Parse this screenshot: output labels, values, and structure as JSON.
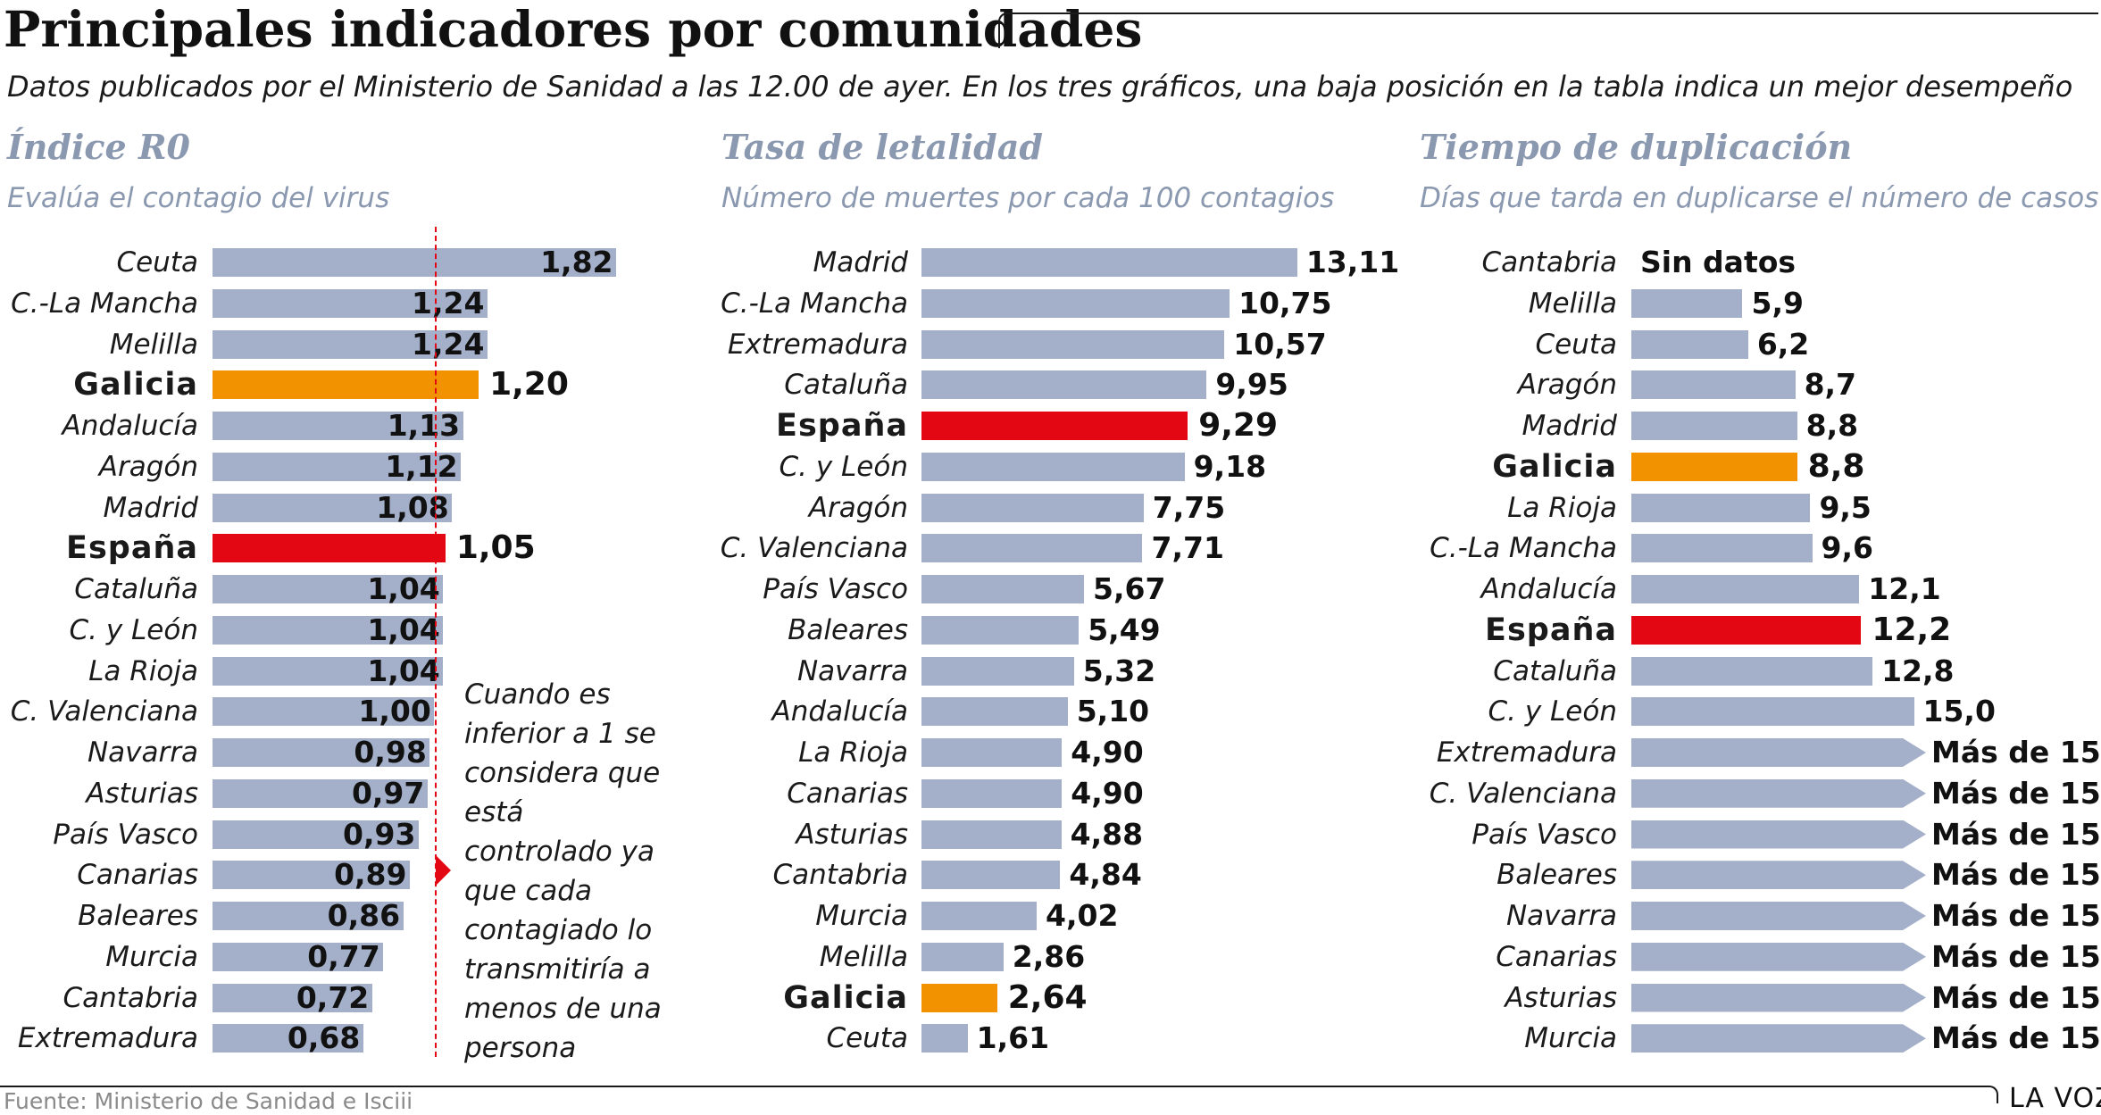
{
  "title": "Principales indicadores por comunidades",
  "subtitle": "Datos publicados por el Ministerio de Sanidad a las 12.00 de ayer. En los tres gráficos, una baja posición en la tabla indica un mejor desempeño",
  "note": "Cuando es inferior a 1 se considera que está controlado ya que cada contagiado lo transmitiría a menos de una persona",
  "source": "Fuente: Ministerio de Sanidad e Isciii",
  "brand": "LA VOZ",
  "colors": {
    "bar": "#a4b0c9",
    "galicia": "#f39200",
    "espana": "#e30613",
    "panel_title": "#8a98b0"
  },
  "chart_data": [
    {
      "type": "bar",
      "orientation": "horizontal",
      "title": "Índice R0",
      "subtitle": "Evalúa el contagio del virus",
      "reference_line": 1.0,
      "categories": [
        "Ceuta",
        "C.-La Mancha",
        "Melilla",
        "Galicia",
        "Andalucía",
        "Aragón",
        "Madrid",
        "España",
        "Cataluña",
        "C. y León",
        "La Rioja",
        "C. Valenciana",
        "Navarra",
        "Asturias",
        "País Vasco",
        "Canarias",
        "Baleares",
        "Murcia",
        "Cantabria",
        "Extremadura"
      ],
      "values": [
        1.82,
        1.24,
        1.24,
        1.2,
        1.13,
        1.12,
        1.08,
        1.05,
        1.04,
        1.04,
        1.04,
        1.0,
        0.98,
        0.97,
        0.93,
        0.89,
        0.86,
        0.77,
        0.72,
        0.68
      ],
      "labels": [
        "1,82",
        "1,24",
        "1,24",
        "1,20",
        "1,13",
        "1,12",
        "1,08",
        "1,05",
        "1,04",
        "1,04",
        "1,04",
        "1,00",
        "0,98",
        "0,97",
        "0,93",
        "0,89",
        "0,86",
        "0,77",
        "0,72",
        "0,68"
      ]
    },
    {
      "type": "bar",
      "orientation": "horizontal",
      "title": "Tasa de letalidad",
      "subtitle": "Número de muertes por cada 100 contagios",
      "categories": [
        "Madrid",
        "C.-La Mancha",
        "Extremadura",
        "Cataluña",
        "España",
        "C. y León",
        "Aragón",
        "C. Valenciana",
        "País Vasco",
        "Baleares",
        "Navarra",
        "Andalucía",
        "La Rioja",
        "Canarias",
        "Asturias",
        "Cantabria",
        "Murcia",
        "Melilla",
        "Galicia",
        "Ceuta"
      ],
      "values": [
        13.11,
        10.75,
        10.57,
        9.95,
        9.29,
        9.18,
        7.75,
        7.71,
        5.67,
        5.49,
        5.32,
        5.1,
        4.9,
        4.9,
        4.88,
        4.84,
        4.02,
        2.86,
        2.64,
        1.61
      ],
      "labels": [
        "13,11",
        "10,75",
        "10,57",
        "9,95",
        "9,29",
        "9,18",
        "7,75",
        "7,71",
        "5,67",
        "5,49",
        "5,32",
        "5,10",
        "4,90",
        "4,90",
        "4,88",
        "4,84",
        "4,02",
        "2,86",
        "2,64",
        "1,61"
      ]
    },
    {
      "type": "bar",
      "orientation": "horizontal",
      "title": "Tiempo de duplicación",
      "subtitle": "Días que tarda en duplicarse el número de casos",
      "categories": [
        "Cantabria",
        "Melilla",
        "Ceuta",
        "Aragón",
        "Madrid",
        "Galicia",
        "La Rioja",
        "C.-La Mancha",
        "Andalucía",
        "España",
        "Cataluña",
        "C. y León",
        "Extremadura",
        "C. Valenciana",
        "País Vasco",
        "Baleares",
        "Navarra",
        "Canarias",
        "Asturias",
        "Murcia"
      ],
      "values": [
        null,
        5.9,
        6.2,
        8.7,
        8.8,
        8.8,
        9.5,
        9.6,
        12.1,
        12.2,
        12.8,
        15.0,
        ">15",
        ">15",
        ">15",
        ">15",
        ">15",
        ">15",
        ">15",
        ">15"
      ],
      "labels": [
        "Sin datos",
        "5,9",
        "6,2",
        "8,7",
        "8,8",
        "8,8",
        "9,5",
        "9,6",
        "12,1",
        "12,2",
        "12,8",
        "15,0",
        "Más de 15",
        "Más de 15",
        "Más de 15",
        "Más de 15",
        "Más de 15",
        "Más de 15",
        "Más de 15",
        "Más de 15"
      ]
    }
  ]
}
